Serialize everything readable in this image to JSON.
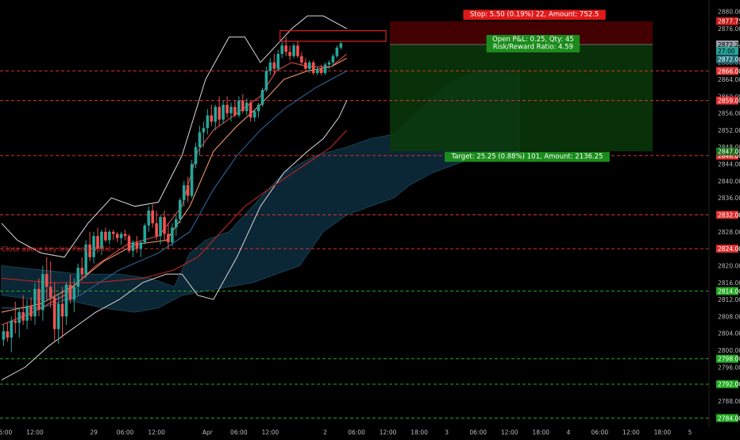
{
  "chart_data": {
    "type": "candlestick",
    "symbol_note": "Close above key lev. Pen(...) Mid",
    "y_axis": {
      "min": 2782,
      "max": 2882,
      "ticks": [
        2784,
        2788,
        2792,
        2796,
        2800,
        2804,
        2808,
        2812,
        2816,
        2820,
        2824,
        2828,
        2832,
        2836,
        2840,
        2844,
        2848,
        2852,
        2856,
        2860,
        2864,
        2868,
        2872,
        2876,
        2880
      ],
      "tick_labels": [
        "2784.00",
        "2788.00",
        "2792.00",
        "2796.00",
        "2800.00",
        "2804.00",
        "2808.00",
        "2812.00",
        "2816.00",
        "2820.00",
        "2824.00",
        "2828.00",
        "2832.00",
        "2836.00",
        "2840.00",
        "2844.00",
        "2848.00",
        "2852.00",
        "2856.00",
        "2860.00",
        "2864.00",
        "2868.00",
        "2872.00",
        "2876.00",
        "2880.00"
      ]
    },
    "x_axis": {
      "n_slots": 176,
      "labels": [
        {
          "i": 0,
          "text": "06:00"
        },
        {
          "i": 8,
          "text": "12:00"
        },
        {
          "i": 23,
          "text": "29"
        },
        {
          "i": 31,
          "text": "06:00"
        },
        {
          "i": 39,
          "text": "12:00"
        },
        {
          "i": 52,
          "text": "Apr"
        },
        {
          "i": 60,
          "text": "06:00"
        },
        {
          "i": 68,
          "text": "12:00"
        },
        {
          "i": 82,
          "text": "2"
        },
        {
          "i": 90,
          "text": "06:00"
        },
        {
          "i": 98,
          "text": "12:00"
        },
        {
          "i": 106,
          "text": "18:00"
        },
        {
          "i": 113,
          "text": "3"
        },
        {
          "i": 121,
          "text": "06:00"
        },
        {
          "i": 129,
          "text": "12:00"
        },
        {
          "i": 137,
          "text": "18:00"
        },
        {
          "i": 144,
          "text": "4"
        },
        {
          "i": 152,
          "text": "06:00"
        },
        {
          "i": 160,
          "text": "12:00"
        },
        {
          "i": 168,
          "text": "18:00"
        },
        {
          "i": 175,
          "text": "5"
        }
      ]
    },
    "candles": [
      [
        2802.5,
        2806.0,
        2801.0,
        2804.5
      ],
      [
        2804.5,
        2806.5,
        2802.0,
        2803.0
      ],
      [
        2803.0,
        2808.0,
        2799.5,
        2807.0
      ],
      [
        2807.0,
        2811.5,
        2804.0,
        2806.5
      ],
      [
        2806.5,
        2810.0,
        2803.0,
        2809.0
      ],
      [
        2809.0,
        2813.0,
        2806.0,
        2807.0
      ],
      [
        2807.0,
        2812.0,
        2805.0,
        2810.5
      ],
      [
        2810.5,
        2812.5,
        2807.0,
        2808.0
      ],
      [
        2808.0,
        2816.0,
        2806.0,
        2814.5
      ],
      [
        2814.5,
        2817.0,
        2808.0,
        2809.5
      ],
      [
        2809.5,
        2820.0,
        2807.0,
        2818.0
      ],
      [
        2818.0,
        2822.0,
        2812.0,
        2815.0
      ],
      [
        2815.0,
        2821.0,
        2810.0,
        2812.5
      ],
      [
        2812.5,
        2816.0,
        2802.0,
        2805.0
      ],
      [
        2805.0,
        2813.0,
        2801.5,
        2811.0
      ],
      [
        2811.0,
        2815.0,
        2803.0,
        2808.0
      ],
      [
        2808.0,
        2816.0,
        2806.0,
        2815.5
      ],
      [
        2815.5,
        2818.0,
        2811.0,
        2812.0
      ],
      [
        2812.0,
        2817.0,
        2809.0,
        2815.0
      ],
      [
        2815.0,
        2820.5,
        2813.0,
        2819.5
      ],
      [
        2819.5,
        2822.0,
        2816.5,
        2818.0
      ],
      [
        2818.0,
        2826.0,
        2817.0,
        2825.0
      ],
      [
        2825.0,
        2828.0,
        2821.0,
        2822.0
      ],
      [
        2822.0,
        2828.0,
        2820.5,
        2827.0
      ],
      [
        2827.0,
        2829.0,
        2823.0,
        2824.0
      ],
      [
        2824.0,
        2828.5,
        2822.5,
        2828.0
      ],
      [
        2828.0,
        2829.0,
        2825.5,
        2826.0
      ],
      [
        2826.0,
        2828.5,
        2825.0,
        2828.0
      ],
      [
        2828.0,
        2828.5,
        2826.0,
        2827.5
      ],
      [
        2827.5,
        2828.0,
        2825.5,
        2826.5
      ],
      [
        2826.5,
        2828.0,
        2825.0,
        2827.5
      ],
      [
        2827.5,
        2828.5,
        2826.0,
        2827.0
      ],
      [
        2827.0,
        2827.5,
        2823.0,
        2823.5
      ],
      [
        2823.5,
        2826.0,
        2822.0,
        2825.5
      ],
      [
        2825.5,
        2827.0,
        2823.0,
        2824.0
      ],
      [
        2824.0,
        2826.0,
        2822.0,
        2825.5
      ],
      [
        2825.5,
        2830.0,
        2825.0,
        2829.5
      ],
      [
        2829.5,
        2834.0,
        2828.0,
        2833.0
      ],
      [
        2833.0,
        2834.5,
        2829.0,
        2830.0
      ],
      [
        2830.0,
        2833.0,
        2826.0,
        2827.0
      ],
      [
        2827.0,
        2832.0,
        2825.0,
        2831.5
      ],
      [
        2831.5,
        2833.0,
        2826.0,
        2827.5
      ],
      [
        2827.5,
        2830.0,
        2824.0,
        2825.5
      ],
      [
        2825.5,
        2830.0,
        2824.5,
        2829.0
      ],
      [
        2829.0,
        2832.0,
        2827.0,
        2831.0
      ],
      [
        2831.0,
        2836.0,
        2830.0,
        2835.5
      ],
      [
        2835.5,
        2840.0,
        2834.0,
        2839.0
      ],
      [
        2839.0,
        2841.0,
        2835.0,
        2836.5
      ],
      [
        2836.5,
        2845.0,
        2836.0,
        2844.0
      ],
      [
        2844.0,
        2849.0,
        2843.0,
        2848.0
      ],
      [
        2848.0,
        2853.0,
        2846.0,
        2851.5
      ],
      [
        2851.5,
        2854.0,
        2848.0,
        2852.5
      ],
      [
        2852.5,
        2857.0,
        2851.0,
        2855.5
      ],
      [
        2855.5,
        2858.0,
        2853.0,
        2854.0
      ],
      [
        2854.0,
        2858.0,
        2852.0,
        2857.5
      ],
      [
        2857.5,
        2860.0,
        2853.0,
        2854.5
      ],
      [
        2854.5,
        2859.0,
        2853.5,
        2858.0
      ],
      [
        2858.0,
        2860.0,
        2855.0,
        2856.0
      ],
      [
        2856.0,
        2858.5,
        2854.0,
        2857.5
      ],
      [
        2857.5,
        2859.0,
        2855.0,
        2855.5
      ],
      [
        2855.5,
        2860.0,
        2855.0,
        2859.0
      ],
      [
        2859.0,
        2860.5,
        2856.0,
        2856.5
      ],
      [
        2856.5,
        2859.5,
        2855.5,
        2858.5
      ],
      [
        2858.5,
        2859.0,
        2854.0,
        2855.0
      ],
      [
        2855.0,
        2857.0,
        2854.0,
        2856.5
      ],
      [
        2856.5,
        2858.5,
        2855.0,
        2858.0
      ],
      [
        2858.0,
        2862.0,
        2857.5,
        2861.5
      ],
      [
        2861.5,
        2867.0,
        2861.0,
        2866.0
      ],
      [
        2866.0,
        2869.0,
        2865.0,
        2868.0
      ],
      [
        2868.0,
        2870.0,
        2865.0,
        2866.5
      ],
      [
        2866.5,
        2871.0,
        2866.0,
        2870.0
      ],
      [
        2870.0,
        2873.0,
        2869.0,
        2872.0
      ],
      [
        2872.0,
        2874.0,
        2869.5,
        2870.5
      ],
      [
        2870.5,
        2872.0,
        2868.5,
        2869.5
      ],
      [
        2869.5,
        2872.5,
        2869.0,
        2872.0
      ],
      [
        2872.0,
        2873.0,
        2869.0,
        2869.5
      ],
      [
        2869.5,
        2870.5,
        2867.5,
        2868.0
      ],
      [
        2868.0,
        2869.0,
        2866.0,
        2866.5
      ],
      [
        2866.5,
        2868.5,
        2865.5,
        2868.0
      ],
      [
        2868.0,
        2868.5,
        2865.0,
        2865.5
      ],
      [
        2865.5,
        2867.0,
        2865.0,
        2866.5
      ],
      [
        2866.5,
        2867.5,
        2865.0,
        2865.5
      ],
      [
        2865.5,
        2868.0,
        2865.0,
        2867.5
      ],
      [
        2867.5,
        2868.5,
        2866.5,
        2868.0
      ],
      [
        2868.0,
        2870.0,
        2867.0,
        2869.5
      ],
      [
        2869.5,
        2872.0,
        2869.0,
        2871.5
      ],
      [
        2871.5,
        2873.0,
        2871.0,
        2872.5
      ]
    ],
    "indicators": {
      "bb_upper": [
        [
          0,
          2830
        ],
        [
          4,
          2826
        ],
        [
          10,
          2823
        ],
        [
          16,
          2822
        ],
        [
          22,
          2830
        ],
        [
          28,
          2836
        ],
        [
          34,
          2834
        ],
        [
          40,
          2835
        ],
        [
          46,
          2846
        ],
        [
          52,
          2864
        ],
        [
          58,
          2874
        ],
        [
          62,
          2874
        ],
        [
          66,
          2868
        ],
        [
          70,
          2872
        ],
        [
          74,
          2876
        ],
        [
          78,
          2879
        ],
        [
          82,
          2879
        ],
        [
          86,
          2877
        ],
        [
          88,
          2876
        ]
      ],
      "bb_lower": [
        [
          0,
          2793
        ],
        [
          6,
          2796
        ],
        [
          12,
          2801
        ],
        [
          18,
          2805
        ],
        [
          24,
          2809
        ],
        [
          30,
          2812
        ],
        [
          36,
          2816
        ],
        [
          42,
          2818
        ],
        [
          46,
          2818
        ],
        [
          50,
          2813
        ],
        [
          54,
          2812
        ],
        [
          60,
          2822
        ],
        [
          66,
          2834
        ],
        [
          72,
          2842
        ],
        [
          78,
          2847
        ],
        [
          82,
          2850
        ],
        [
          86,
          2855
        ],
        [
          88,
          2859
        ]
      ],
      "ema_fast": [
        [
          0,
          2806
        ],
        [
          8,
          2809
        ],
        [
          16,
          2813
        ],
        [
          24,
          2820
        ],
        [
          32,
          2825
        ],
        [
          40,
          2827
        ],
        [
          46,
          2834
        ],
        [
          50,
          2847
        ],
        [
          54,
          2852
        ],
        [
          60,
          2856
        ],
        [
          66,
          2860
        ],
        [
          70,
          2866
        ],
        [
          74,
          2868
        ],
        [
          78,
          2867
        ],
        [
          84,
          2867
        ],
        [
          88,
          2870
        ]
      ],
      "ema_slow": [
        [
          0,
          2809
        ],
        [
          10,
          2811
        ],
        [
          18,
          2815
        ],
        [
          26,
          2821
        ],
        [
          34,
          2825
        ],
        [
          42,
          2826
        ],
        [
          48,
          2834
        ],
        [
          54,
          2847
        ],
        [
          60,
          2853
        ],
        [
          66,
          2858
        ],
        [
          72,
          2864
        ],
        [
          78,
          2866
        ],
        [
          84,
          2867
        ],
        [
          88,
          2869
        ]
      ],
      "ma_blue": [
        [
          0,
          2810
        ],
        [
          10,
          2810
        ],
        [
          20,
          2813
        ],
        [
          30,
          2819
        ],
        [
          40,
          2823
        ],
        [
          48,
          2828
        ],
        [
          54,
          2838
        ],
        [
          60,
          2846
        ],
        [
          66,
          2852
        ],
        [
          72,
          2857
        ],
        [
          80,
          2862
        ],
        [
          88,
          2866
        ]
      ],
      "ma_red": [
        [
          0,
          2817
        ],
        [
          12,
          2816
        ],
        [
          24,
          2816
        ],
        [
          36,
          2817
        ],
        [
          44,
          2819
        ],
        [
          50,
          2822
        ],
        [
          56,
          2828
        ],
        [
          62,
          2834
        ],
        [
          68,
          2838
        ],
        [
          76,
          2843
        ],
        [
          84,
          2848
        ],
        [
          88,
          2852
        ]
      ],
      "cloud_top": [
        [
          0,
          2820
        ],
        [
          10,
          2819
        ],
        [
          20,
          2818
        ],
        [
          30,
          2818
        ],
        [
          38,
          2817
        ],
        [
          44,
          2815
        ],
        [
          48,
          2823
        ],
        [
          52,
          2826
        ],
        [
          58,
          2828
        ],
        [
          66,
          2836
        ],
        [
          72,
          2842
        ],
        [
          80,
          2846
        ],
        [
          88,
          2848
        ],
        [
          94,
          2850
        ],
        [
          100,
          2851
        ],
        [
          106,
          2856
        ],
        [
          110,
          2860
        ],
        [
          116,
          2864
        ],
        [
          122,
          2866
        ],
        [
          132,
          2866
        ]
      ],
      "cloud_bottom": [
        [
          0,
          2813
        ],
        [
          8,
          2812
        ],
        [
          16,
          2812
        ],
        [
          26,
          2810
        ],
        [
          34,
          2809
        ],
        [
          40,
          2810
        ],
        [
          46,
          2813
        ],
        [
          52,
          2814
        ],
        [
          58,
          2815
        ],
        [
          64,
          2816
        ],
        [
          70,
          2818
        ],
        [
          76,
          2820
        ],
        [
          82,
          2828
        ],
        [
          88,
          2832
        ],
        [
          94,
          2834
        ],
        [
          100,
          2836
        ],
        [
          104,
          2839
        ],
        [
          110,
          2842
        ],
        [
          116,
          2844
        ],
        [
          122,
          2846
        ],
        [
          132,
          2847
        ]
      ]
    },
    "horizontal_levels": [
      {
        "value": 2866.0,
        "label": "2866.00",
        "color": "#e03030"
      },
      {
        "value": 2859.0,
        "label": "2859.00",
        "color": "#e03030"
      },
      {
        "value": 2846.0,
        "label": "2846.00",
        "color": "#e03030"
      },
      {
        "value": 2832.0,
        "label": "2832.00",
        "color": "#e03030"
      },
      {
        "value": 2824.0,
        "label": "2824.00",
        "color": "#e03030"
      },
      {
        "value": 2814.0,
        "label": "2814.00",
        "color": "#22aa22"
      },
      {
        "value": 2798.0,
        "label": "2798.00",
        "color": "#22aa22"
      },
      {
        "value": 2792.0,
        "label": "2792.00",
        "color": "#22aa22"
      },
      {
        "value": 2784.0,
        "label": "2784.00",
        "color": "#22aa22"
      }
    ],
    "resistance_box": {
      "i0": 71,
      "i1": 98,
      "top": 2875.5,
      "bottom": 2873.0,
      "color": "#e02020"
    },
    "position": {
      "i0": 99,
      "i1": 166,
      "entry": 2872.25,
      "stop": 2877.75,
      "target": 2847.0,
      "stop_label": "Stop: 5.50 (0.19%) 22, Amount: 752.5",
      "target_label": "Target: 25.25 (0.88%) 101, Amount: 2136.25",
      "pnl_label_1": "Open P&L: 0.25, Qty: 45",
      "pnl_label_2": "Risk/Reward Ratio: 4.59"
    },
    "price_tags": [
      {
        "value": 2877.75,
        "label": "2877.75",
        "bg": "#cc1a1a",
        "fg": "#ffffff"
      },
      {
        "value": 2872.25,
        "label": "2872.25",
        "bg": "#9aa0a6",
        "fg": "#000000"
      },
      {
        "value": 2870.75,
        "label": "27:00",
        "bg": "#26a69a",
        "fg": "#000000"
      },
      {
        "value": 2868.75,
        "label": "2872.00",
        "bg": "#1f6f78",
        "fg": "#ffffff"
      },
      {
        "value": 2847.0,
        "label": "2847.00",
        "bg": "#1b6d1b",
        "fg": "#ffffff"
      }
    ],
    "colors": {
      "up": "#26a69a",
      "down": "#ef5350",
      "bb": "#d8d8d8",
      "ema_fast": "#ef5350",
      "ema_slow": "#ffa070",
      "ma_blue": "#2a5c8c",
      "ma_red": "#b02424",
      "cloud": "#0c2a3a"
    }
  }
}
